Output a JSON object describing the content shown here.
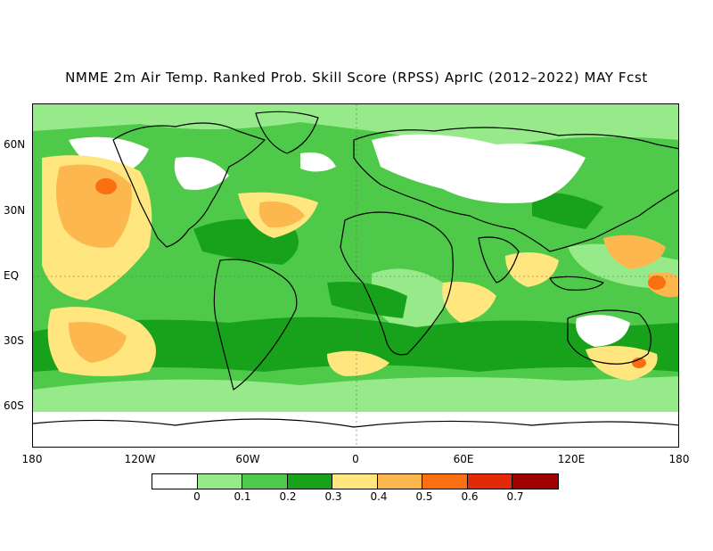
{
  "title": "NMME 2m Air Temp. Ranked Prob. Skill Score (RPSS) AprIC (2012–2022) MAY Fcst",
  "map": {
    "lat_labels": [
      "60N",
      "30N",
      "EQ",
      "30S",
      "60S"
    ],
    "lon_labels": [
      "180",
      "120W",
      "60W",
      "0",
      "60E",
      "120E",
      "180"
    ],
    "colors": {
      "bin_lt0": "#ffffff",
      "bin_0_01": "#96ea8a",
      "bin_01_02": "#4fc94a",
      "bin_02_03": "#18a21c",
      "bin_03_04": "#ffe67e",
      "bin_04_05": "#fcb84e",
      "bin_05_06": "#fa6f10",
      "bin_06_07": "#e22a06",
      "bin_gt07": "#a00000",
      "land_outline": "#000000"
    }
  },
  "colorbar": {
    "colors": [
      "#ffffff",
      "#96ea8a",
      "#4fc94a",
      "#18a21c",
      "#ffe67e",
      "#fcb84e",
      "#fa6f10",
      "#e22a06",
      "#a00000"
    ],
    "labels": [
      "0",
      "0.1",
      "0.2",
      "0.3",
      "0.4",
      "0.5",
      "0.6",
      "0.7"
    ]
  }
}
